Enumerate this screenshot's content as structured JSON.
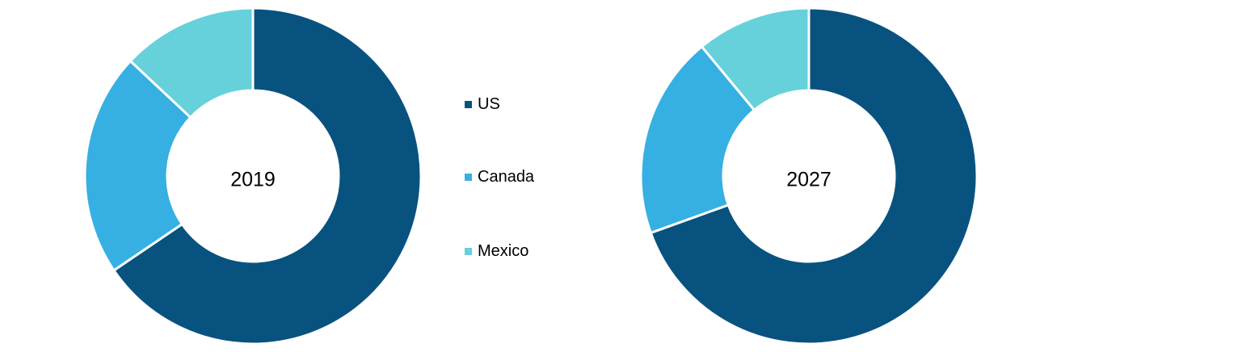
{
  "chart_data": [
    {
      "type": "pie",
      "center_label": "2019",
      "categories": [
        "US",
        "Canada",
        "Mexico"
      ],
      "values": [
        65.5,
        21.5,
        13.0
      ],
      "colors": [
        "#08527F",
        "#36B0E2",
        "#66D1DA"
      ],
      "legend_position": "right"
    },
    {
      "type": "pie",
      "center_label": "2027",
      "categories": [
        "US",
        "Canada",
        "Mexico"
      ],
      "values": [
        69.5,
        19.5,
        11.0
      ],
      "colors": [
        "#08527F",
        "#36B0E2",
        "#66D1DA"
      ],
      "legend_position": "right"
    }
  ],
  "legend": {
    "items": [
      {
        "label": "US",
        "color": "#08527F"
      },
      {
        "label": "Canada",
        "color": "#36B0E2"
      },
      {
        "label": "Mexico",
        "color": "#66D1DA"
      }
    ]
  }
}
